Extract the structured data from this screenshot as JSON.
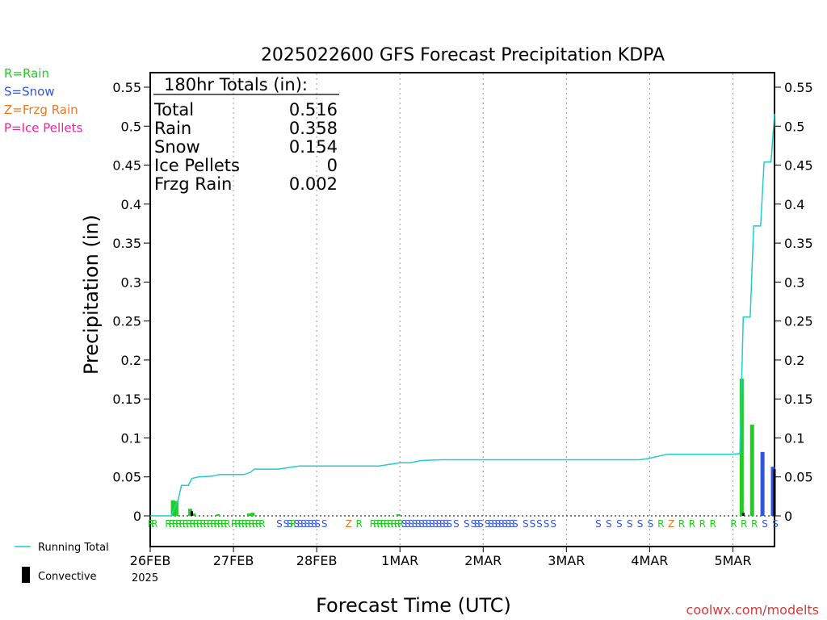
{
  "chart_data": {
    "type": "bar",
    "title": "2025022600 GFS Forecast Precipitation KDPA",
    "xlabel": "Forecast Time (UTC)",
    "ylabel": "Precipitation (in)",
    "ylim": [
      0,
      0.57
    ],
    "y_ticks": [
      "0",
      "0.05",
      "0.1",
      "0.15",
      "0.2",
      "0.25",
      "0.3",
      "0.35",
      "0.4",
      "0.45",
      "0.5",
      "0.55"
    ],
    "x_range_hours": [
      0,
      180
    ],
    "x_ticks": [
      {
        "label": "26FEB",
        "hour": 0
      },
      {
        "label": "27FEB",
        "hour": 24
      },
      {
        "label": "28FEB",
        "hour": 48
      },
      {
        "label": "1MAR",
        "hour": 72
      },
      {
        "label": "2MAR",
        "hour": 96
      },
      {
        "label": "3MAR",
        "hour": 120
      },
      {
        "label": "4MAR",
        "hour": 144
      },
      {
        "label": "5MAR",
        "hour": 168
      }
    ],
    "x_year_label": "2025",
    "grid": "vertical dotted",
    "type_legend": [
      {
        "code": "R",
        "text": "R=Rain",
        "color": "#22cc22"
      },
      {
        "code": "S",
        "text": "S=Snow",
        "color": "#3355dd"
      },
      {
        "code": "Z",
        "text": "Z=Frzg Rain",
        "color": "#ee7722"
      },
      {
        "code": "P",
        "text": "P=Ice Pellets",
        "color": "#ee2299"
      }
    ],
    "series_legend": [
      {
        "name": "Running Total",
        "color": "#22cccc"
      },
      {
        "name": "Convective",
        "color": "#000000"
      }
    ],
    "totals": {
      "header": "180hr Totals (in):",
      "rows": [
        {
          "label": "Total",
          "value": "0.516"
        },
        {
          "label": "Rain",
          "value": "0.358"
        },
        {
          "label": "Snow",
          "value": "0.154"
        },
        {
          "label": "Ice Pellets",
          "value": "0"
        },
        {
          "label": "Frzg Rain",
          "value": "0.002"
        }
      ]
    },
    "bars": [
      {
        "hour": 7,
        "value": 0.02,
        "type": "R"
      },
      {
        "hour": 8,
        "value": 0.019,
        "type": "R"
      },
      {
        "hour": 12,
        "value": 0.009,
        "type": "R"
      },
      {
        "hour": 13,
        "value": 0.003,
        "type": "R"
      },
      {
        "hour": 20,
        "value": 0.002,
        "type": "R"
      },
      {
        "hour": 29,
        "value": 0.003,
        "type": "R"
      },
      {
        "hour": 30,
        "value": 0.004,
        "type": "R"
      },
      {
        "hour": 72,
        "value": 0.002,
        "type": "R"
      },
      {
        "hour": 171,
        "value": 0.176,
        "type": "R"
      },
      {
        "hour": 174,
        "value": 0.117,
        "type": "R"
      },
      {
        "hour": 177,
        "value": 0.082,
        "type": "S"
      },
      {
        "hour": 180,
        "value": 0.063,
        "type": "S"
      }
    ],
    "convective": [
      {
        "hour": 12,
        "value": 0.006
      },
      {
        "hour": 171,
        "value": 0.004
      },
      {
        "hour": 180,
        "value": 0.06
      }
    ],
    "running_total": [
      [
        0,
        0
      ],
      [
        6,
        0
      ],
      [
        8,
        0.02
      ],
      [
        9,
        0.039
      ],
      [
        11,
        0.039
      ],
      [
        12,
        0.048
      ],
      [
        14,
        0.05
      ],
      [
        18,
        0.051
      ],
      [
        20,
        0.053
      ],
      [
        27,
        0.053
      ],
      [
        29,
        0.056
      ],
      [
        30,
        0.06
      ],
      [
        37,
        0.06
      ],
      [
        40,
        0.062
      ],
      [
        43,
        0.064
      ],
      [
        66,
        0.064
      ],
      [
        69,
        0.066
      ],
      [
        72,
        0.068
      ],
      [
        75,
        0.068
      ],
      [
        78,
        0.071
      ],
      [
        84,
        0.072
      ],
      [
        141,
        0.072
      ],
      [
        143,
        0.073
      ],
      [
        145,
        0.075
      ],
      [
        147,
        0.077
      ],
      [
        149,
        0.079
      ],
      [
        168,
        0.079
      ],
      [
        170,
        0.08
      ],
      [
        171,
        0.255
      ],
      [
        173,
        0.255
      ],
      [
        174,
        0.372
      ],
      [
        176,
        0.372
      ],
      [
        177,
        0.454
      ],
      [
        179,
        0.454
      ],
      [
        180,
        0.516
      ]
    ],
    "ptype_row": [
      {
        "hour": 0,
        "code": "R"
      },
      {
        "hour": 1,
        "code": "R"
      },
      {
        "hour": 5,
        "code": "R"
      },
      {
        "hour": 6,
        "code": "R"
      },
      {
        "hour": 7,
        "code": "R"
      },
      {
        "hour": 8,
        "code": "R"
      },
      {
        "hour": 9,
        "code": "R"
      },
      {
        "hour": 10,
        "code": "R"
      },
      {
        "hour": 11,
        "code": "R"
      },
      {
        "hour": 12,
        "code": "R"
      },
      {
        "hour": 13,
        "code": "R"
      },
      {
        "hour": 14,
        "code": "R"
      },
      {
        "hour": 15,
        "code": "R"
      },
      {
        "hour": 16,
        "code": "R"
      },
      {
        "hour": 17,
        "code": "R"
      },
      {
        "hour": 18,
        "code": "R"
      },
      {
        "hour": 19,
        "code": "R"
      },
      {
        "hour": 20,
        "code": "R"
      },
      {
        "hour": 21,
        "code": "R"
      },
      {
        "hour": 22,
        "code": "R"
      },
      {
        "hour": 24,
        "code": "R"
      },
      {
        "hour": 25,
        "code": "R"
      },
      {
        "hour": 26,
        "code": "R"
      },
      {
        "hour": 27,
        "code": "R"
      },
      {
        "hour": 28,
        "code": "R"
      },
      {
        "hour": 29,
        "code": "R"
      },
      {
        "hour": 30,
        "code": "R"
      },
      {
        "hour": 31,
        "code": "R"
      },
      {
        "hour": 32,
        "code": "R"
      },
      {
        "hour": 37,
        "code": "S"
      },
      {
        "hour": 39,
        "code": "S"
      },
      {
        "hour": 40,
        "code": "S"
      },
      {
        "hour": 41,
        "code": "R"
      },
      {
        "hour": 42,
        "code": "S"
      },
      {
        "hour": 43,
        "code": "S"
      },
      {
        "hour": 44,
        "code": "S"
      },
      {
        "hour": 45,
        "code": "S"
      },
      {
        "hour": 46,
        "code": "S"
      },
      {
        "hour": 47,
        "code": "S"
      },
      {
        "hour": 48,
        "code": "S"
      },
      {
        "hour": 50,
        "code": "S"
      },
      {
        "hour": 57,
        "code": "Z"
      },
      {
        "hour": 60,
        "code": "R"
      },
      {
        "hour": 64,
        "code": "R"
      },
      {
        "hour": 65,
        "code": "R"
      },
      {
        "hour": 66,
        "code": "R"
      },
      {
        "hour": 67,
        "code": "R"
      },
      {
        "hour": 68,
        "code": "R"
      },
      {
        "hour": 69,
        "code": "R"
      },
      {
        "hour": 70,
        "code": "R"
      },
      {
        "hour": 71,
        "code": "R"
      },
      {
        "hour": 72,
        "code": "R"
      },
      {
        "hour": 73,
        "code": "S"
      },
      {
        "hour": 74,
        "code": "S"
      },
      {
        "hour": 75,
        "code": "S"
      },
      {
        "hour": 76,
        "code": "S"
      },
      {
        "hour": 77,
        "code": "S"
      },
      {
        "hour": 78,
        "code": "S"
      },
      {
        "hour": 79,
        "code": "S"
      },
      {
        "hour": 80,
        "code": "S"
      },
      {
        "hour": 81,
        "code": "S"
      },
      {
        "hour": 82,
        "code": "S"
      },
      {
        "hour": 83,
        "code": "S"
      },
      {
        "hour": 84,
        "code": "S"
      },
      {
        "hour": 85,
        "code": "S"
      },
      {
        "hour": 86,
        "code": "S"
      },
      {
        "hour": 88,
        "code": "S"
      },
      {
        "hour": 91,
        "code": "S"
      },
      {
        "hour": 93,
        "code": "S"
      },
      {
        "hour": 94,
        "code": "S"
      },
      {
        "hour": 95,
        "code": "S"
      },
      {
        "hour": 97,
        "code": "S"
      },
      {
        "hour": 98,
        "code": "S"
      },
      {
        "hour": 99,
        "code": "S"
      },
      {
        "hour": 100,
        "code": "S"
      },
      {
        "hour": 101,
        "code": "S"
      },
      {
        "hour": 102,
        "code": "S"
      },
      {
        "hour": 103,
        "code": "S"
      },
      {
        "hour": 104,
        "code": "S"
      },
      {
        "hour": 105,
        "code": "S"
      },
      {
        "hour": 108,
        "code": "S"
      },
      {
        "hour": 110,
        "code": "S"
      },
      {
        "hour": 112,
        "code": "S"
      },
      {
        "hour": 114,
        "code": "S"
      },
      {
        "hour": 116,
        "code": "S"
      },
      {
        "hour": 129,
        "code": "S"
      },
      {
        "hour": 132,
        "code": "S"
      },
      {
        "hour": 135,
        "code": "S"
      },
      {
        "hour": 138,
        "code": "S"
      },
      {
        "hour": 141,
        "code": "S"
      },
      {
        "hour": 144,
        "code": "S"
      },
      {
        "hour": 147,
        "code": "R"
      },
      {
        "hour": 150,
        "code": "Z"
      },
      {
        "hour": 153,
        "code": "R"
      },
      {
        "hour": 156,
        "code": "R"
      },
      {
        "hour": 159,
        "code": "R"
      },
      {
        "hour": 162,
        "code": "R"
      },
      {
        "hour": 168,
        "code": "R"
      },
      {
        "hour": 171,
        "code": "R"
      },
      {
        "hour": 174,
        "code": "R"
      },
      {
        "hour": 177,
        "code": "S"
      },
      {
        "hour": 180,
        "code": "S"
      }
    ],
    "credit": "coolwx.com/modelts"
  }
}
